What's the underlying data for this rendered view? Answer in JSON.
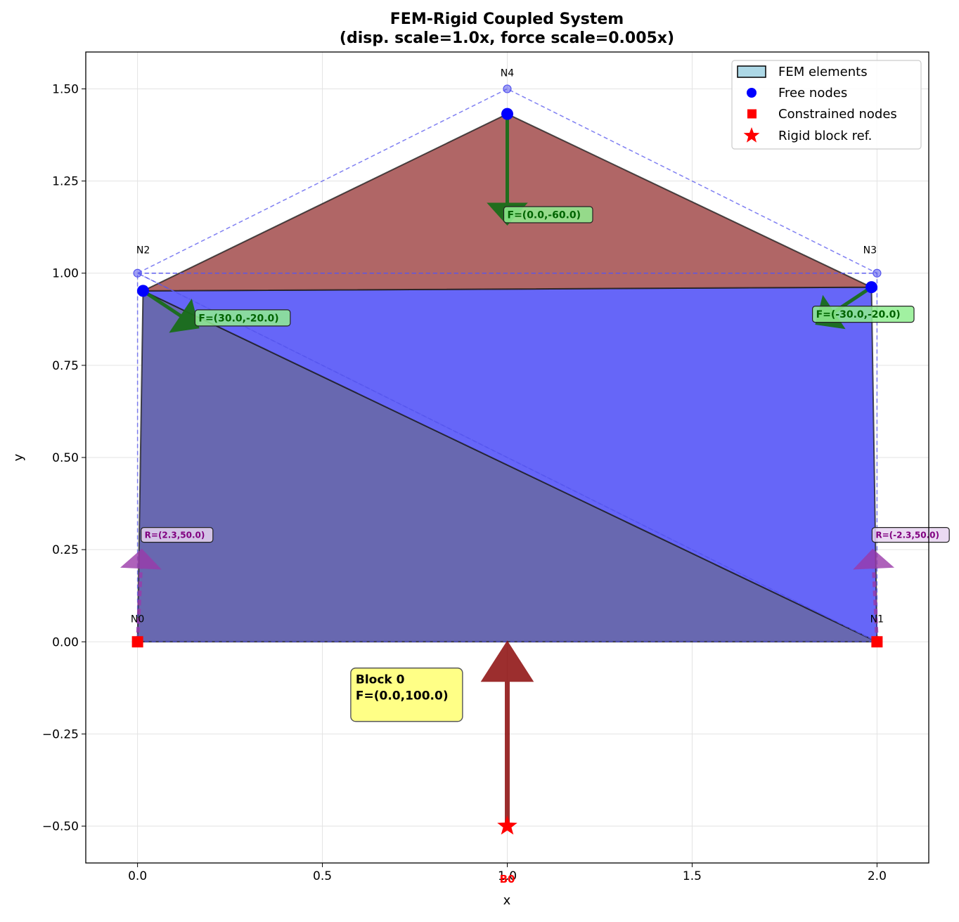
{
  "chart_data": {
    "type": "scatter",
    "title_line1": "FEM-Rigid Coupled System",
    "title_line2": "(disp. scale=1.0x, force scale=0.005x)",
    "xlabel": "x",
    "ylabel": "y",
    "xlim": [
      -0.14,
      2.14
    ],
    "ylim": [
      -0.6,
      1.6
    ],
    "xticks": [
      0.0,
      0.5,
      1.0,
      1.5,
      2.0
    ],
    "xtick_labels": [
      "0.0",
      "0.5",
      "1.0",
      "1.5",
      "2.0"
    ],
    "yticks": [
      -0.5,
      -0.25,
      0.0,
      0.25,
      0.5,
      0.75,
      1.0,
      1.25,
      1.5
    ],
    "ytick_labels": [
      "−0.50",
      "−0.25",
      "0.00",
      "0.25",
      "0.50",
      "0.75",
      "1.00",
      "1.25",
      "1.50"
    ],
    "grid": true,
    "legend_position": "top-right",
    "legend": [
      "FEM elements",
      "Free nodes",
      "Constrained nodes",
      "Rigid block ref."
    ],
    "colors": {
      "element_lower": "#6868b0",
      "element_upper": "#6666f8",
      "element_top": "#b06666",
      "original_mesh": "#5555ee",
      "free_node": "#0000ff",
      "constrained_node": "#ff0000",
      "force_arrow": "#1a6e1a",
      "reaction_arrow": "#9a3aaa",
      "rigid_arrow": "#8b0a0a",
      "legend_patch": "#add8e6",
      "force_label_bg": "#90ee90",
      "reaction_label_bg": "#e6d4f0",
      "block_label_bg": "#ffff80"
    },
    "original_nodes": [
      {
        "label": "N0",
        "x": 0.0,
        "y": 0.0
      },
      {
        "label": "N1",
        "x": 2.0,
        "y": 0.0
      },
      {
        "label": "N2",
        "x": 0.0,
        "y": 1.0
      },
      {
        "label": "N3",
        "x": 2.0,
        "y": 1.0
      },
      {
        "label": "N4",
        "x": 1.0,
        "y": 1.5
      }
    ],
    "deformed_nodes": [
      {
        "x": 0.0,
        "y": 0.0,
        "type": "constrained"
      },
      {
        "x": 2.0,
        "y": 0.0,
        "type": "constrained"
      },
      {
        "x": 0.015,
        "y": 0.952,
        "type": "free"
      },
      {
        "x": 1.985,
        "y": 0.962,
        "type": "free"
      },
      {
        "x": 1.0,
        "y": 1.432,
        "type": "free"
      }
    ],
    "elements": [
      {
        "nodes": [
          0,
          1,
          2
        ],
        "color": "element_lower"
      },
      {
        "nodes": [
          1,
          3,
          2
        ],
        "color": "element_upper"
      },
      {
        "nodes": [
          2,
          3,
          4
        ],
        "color": "element_top"
      }
    ],
    "applied_forces": [
      {
        "node": 2,
        "fx": 30.0,
        "fy": -20.0,
        "label": "F=(30.0,-20.0)"
      },
      {
        "node": 3,
        "fx": -30.0,
        "fy": -20.0,
        "label": "F=(-30.0,-20.0)"
      },
      {
        "node": 4,
        "fx": 0.0,
        "fy": -60.0,
        "label": "F=(0.0,-60.0)"
      }
    ],
    "reactions": [
      {
        "node": 0,
        "rx": 2.3,
        "ry": 50.0,
        "label": "R=(2.3,50.0)"
      },
      {
        "node": 1,
        "rx": -2.3,
        "ry": 50.0,
        "label": "R=(-2.3,50.0)"
      }
    ],
    "rigid_block": {
      "ref_label": "B0",
      "x": 1.0,
      "y": -0.5,
      "fx": 0.0,
      "fy": 100.0,
      "label_line1": "Block 0",
      "label_line2": "F=(0.0,100.0)"
    }
  }
}
